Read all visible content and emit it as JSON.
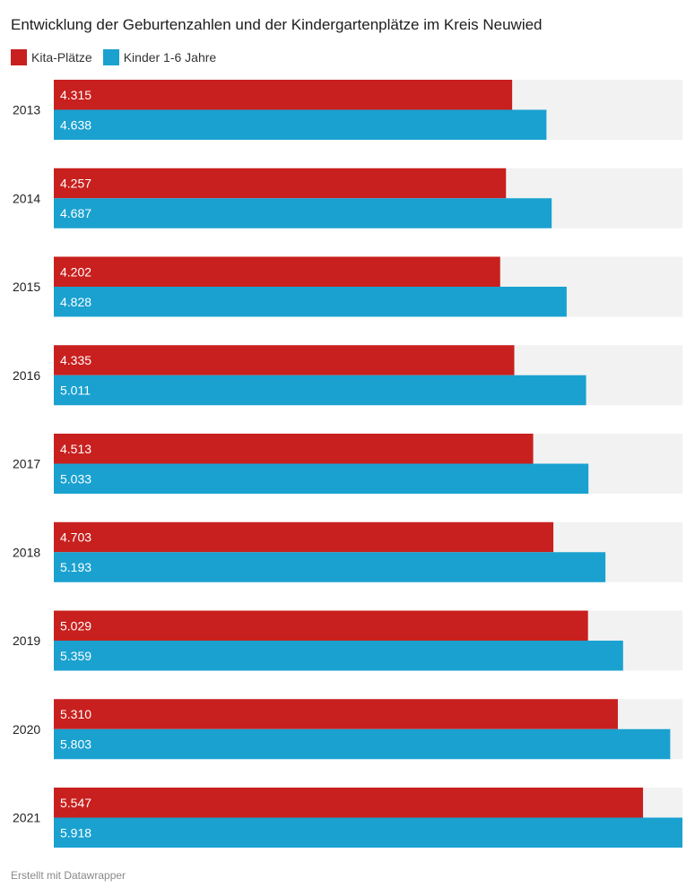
{
  "colors": {
    "kita": "#c8201e",
    "kinder": "#1aa1d0",
    "track": "#f2f2f2",
    "bar_label": "#ffffff"
  },
  "chart_data": {
    "type": "bar",
    "orientation": "horizontal",
    "title": "Entwicklung der Geburtenzahlen und der Kindergartenplätze im Kreis Neuwied",
    "categories": [
      "2013",
      "2014",
      "2015",
      "2016",
      "2017",
      "2018",
      "2019",
      "2020",
      "2021"
    ],
    "series": [
      {
        "name": "Kita-Plätze",
        "color": "#c8201e",
        "values": [
          4315,
          4257,
          4202,
          4335,
          4513,
          4703,
          5029,
          5310,
          5547
        ],
        "labels": [
          "4.315",
          "4.257",
          "4.202",
          "4.335",
          "4.513",
          "4.703",
          "5.029",
          "5.310",
          "5.547"
        ]
      },
      {
        "name": "Kinder 1-6 Jahre",
        "color": "#1aa1d0",
        "values": [
          4638,
          4687,
          4828,
          5011,
          5033,
          5193,
          5359,
          5803,
          5918
        ],
        "labels": [
          "4.638",
          "4.687",
          "4.828",
          "5.011",
          "5.033",
          "5.193",
          "5.359",
          "5.803",
          "5.918"
        ]
      }
    ],
    "xlim": [
      0,
      5918
    ],
    "legend_position": "top-left",
    "grid": false
  },
  "footer": "Erstellt mit Datawrapper"
}
